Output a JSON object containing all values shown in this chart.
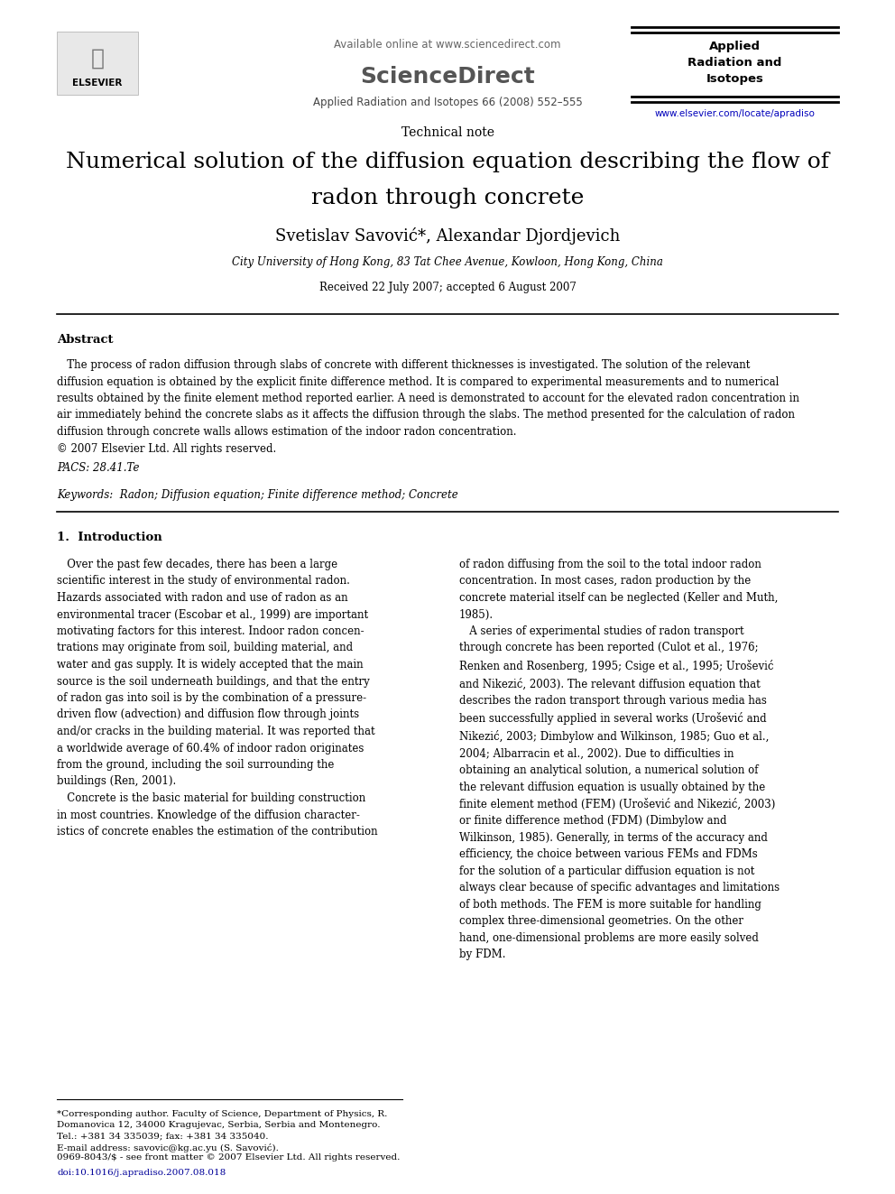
{
  "bg_color": "#ffffff",
  "page_width": 9.92,
  "page_height": 13.23,
  "dpi": 100,
  "header": {
    "available_online": "Available online at www.sciencedirect.com",
    "sciencedirect": "ScienceDirect",
    "journal_name_header": "Applied\nRadiation and\nIsotopes",
    "journal_ref": "Applied Radiation and Isotopes 66 (2008) 552–555",
    "website": "www.elsevier.com/locate/apradiso",
    "website_color": "#0000bb"
  },
  "article_type": "Technical note",
  "title_line1": "Numerical solution of the diffusion equation describing the flow of",
  "title_line2": "radon through concrete",
  "authors": "Svetislav Savović*, Alexandar Djordjevich",
  "affiliation": "City University of Hong Kong, 83 Tat Chee Avenue, Kowloon, Hong Kong, China",
  "received": "Received 22 July 2007; accepted 6 August 2007",
  "abstract_heading": "Abstract",
  "abstract_body": "   The process of radon diffusion through slabs of concrete with different thicknesses is investigated. The solution of the relevant\ndiffusion equation is obtained by the explicit finite difference method. It is compared to experimental measurements and to numerical\nresults obtained by the finite element method reported earlier. A need is demonstrated to account for the elevated radon concentration in\nair immediately behind the concrete slabs as it affects the diffusion through the slabs. The method presented for the calculation of radon\ndiffusion through concrete walls allows estimation of the indoor radon concentration.\n© 2007 Elsevier Ltd. All rights reserved.",
  "pacs": "PACS: 28.41.Te",
  "keywords": "Keywords:  Radon; Diffusion equation; Finite difference method; Concrete",
  "section1_heading": "1.  Introduction",
  "col1_para1": "   Over the past few decades, there has been a large\nscientific interest in the study of environmental radon.\nHazards associated with radon and use of radon as an\nenvironmental tracer (Escobar et al., 1999) are important\nmotivating factors for this interest. Indoor radon concen-\ntrations may originate from soil, building material, and\nwater and gas supply. It is widely accepted that the main\nsource is the soil underneath buildings, and that the entry\nof radon gas into soil is by the combination of a pressure-\ndriven flow (advection) and diffusion flow through joints\nand/or cracks in the building material. It was reported that\na worldwide average of 60.4% of indoor radon originates\nfrom the ground, including the soil surrounding the\nbuildings (Ren, 2001).",
  "col1_para2": "   Concrete is the basic material for building construction\nin most countries. Knowledge of the diffusion character-\nistics of concrete enables the estimation of the contribution",
  "col2_para1": "of radon diffusing from the soil to the total indoor radon\nconcentration. In most cases, radon production by the\nconcrete material itself can be neglected (Keller and Muth,\n1985).",
  "col2_para2": "   A series of experimental studies of radon transport\nthrough concrete has been reported (Culot et al., 1976;\nRenken and Rosenberg, 1995; Csige et al., 1995; Urošević\nand Nikezić, 2003). The relevant diffusion equation that\ndescribes the radon transport through various media has\nbeen successfully applied in several works (Urošević and\nNikezić, 2003; Dimbylow and Wilkinson, 1985; Guo et al.,\n2004; Albarracin et al., 2002). Due to difficulties in\nobtaining an analytical solution, a numerical solution of\nthe relevant diffusion equation is usually obtained by the\nfinite element method (FEM) (Urošević and Nikezić, 2003)\nor finite difference method (FDM) (Dimbylow and\nWilkinson, 1985). Generally, in terms of the accuracy and\nefficiency, the choice between various FEMs and FDMs\nfor the solution of a particular diffusion equation is not\nalways clear because of specific advantages and limitations\nof both methods. The FEM is more suitable for handling\ncomplex three-dimensional geometries. On the other\nhand, one-dimensional problems are more easily solved\nby FDM.",
  "footnote_star": "*Corresponding author. Faculty of Science, Department of Physics, R.\nDomanovica 12, 34000 Kragujevac, Serbia, Serbia and Montenegro.\nTel.: +381 34 335039; fax: +381 34 335040.\nE-mail address: savovic@kg.ac.yu (S. Savović).",
  "footnote_issn": "0969-8043/$ - see front matter © 2007 Elsevier Ltd. All rights reserved.",
  "footnote_doi": "doi:10.1016/j.apradiso.2007.08.018",
  "doi_color": "#000099",
  "link_color": "#000099"
}
